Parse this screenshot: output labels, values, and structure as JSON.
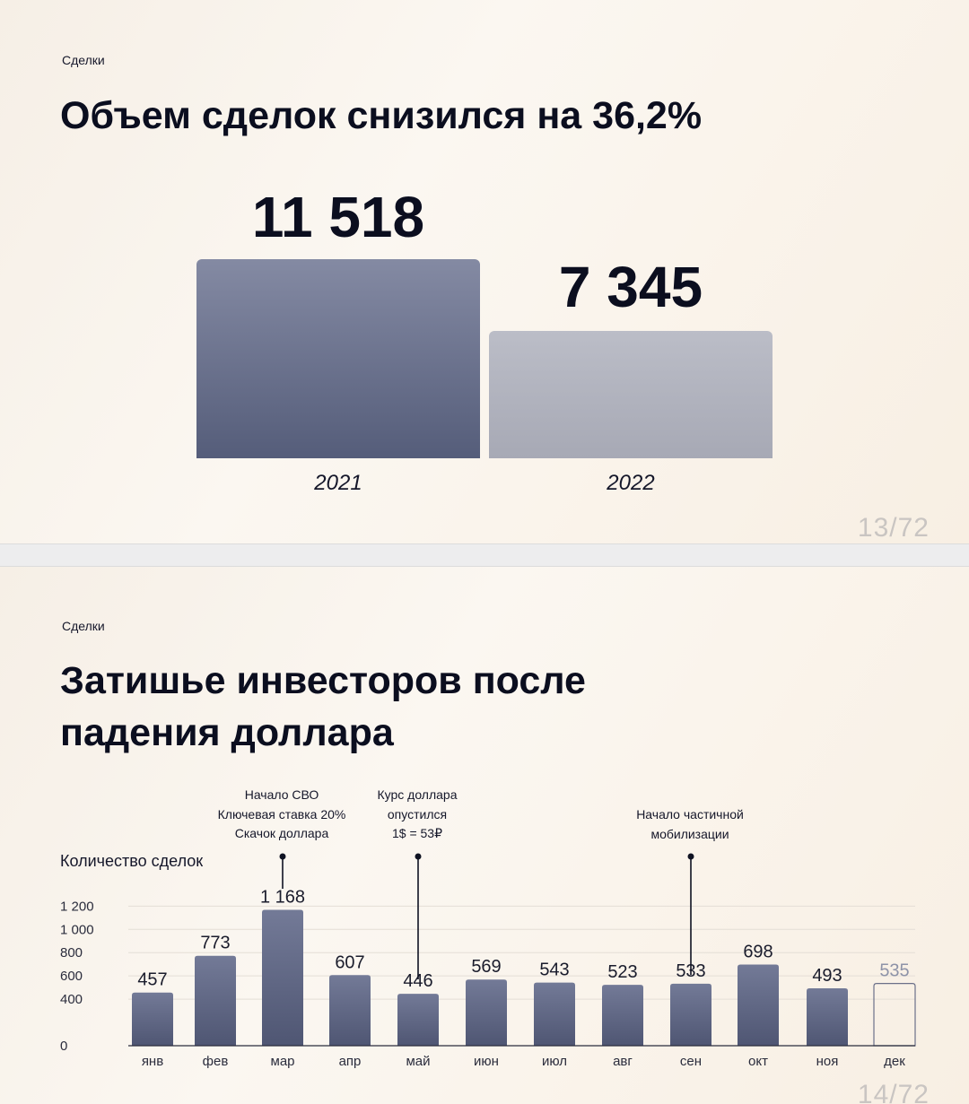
{
  "slide1": {
    "section": "Сделки",
    "title": "Объем сделок снизился на 36,2%",
    "page": "13/72"
  },
  "slide2": {
    "section": "Сделки",
    "title_line1": "Затишье инвесторов после",
    "title_line2": "падения доллара",
    "page": "14/72",
    "annotations": {
      "mar": [
        "Начало СВО",
        "Ключевая ставка 20%",
        "Скачок доллара"
      ],
      "may": [
        "Курс доллара",
        "опустился",
        "1$ = 53₽"
      ],
      "sep": [
        "Начало частичной",
        "мобилизации"
      ]
    }
  },
  "chart_data": [
    {
      "type": "bar",
      "categories": [
        "2021",
        "2022"
      ],
      "values": [
        11518,
        7345
      ],
      "value_labels": [
        "11 518",
        "7 345"
      ],
      "colors": [
        "#5f6784",
        "#b1b3be"
      ]
    },
    {
      "type": "bar",
      "ylabel": "Количество сделок",
      "ylim": [
        0,
        1200
      ],
      "yticks": [
        0,
        400,
        600,
        800,
        1000,
        1200
      ],
      "ytick_labels": [
        "0",
        "400",
        "600",
        "800",
        "1 000",
        "1 200"
      ],
      "categories": [
        "янв",
        "фев",
        "мар",
        "апр",
        "май",
        "июн",
        "июл",
        "авг",
        "сен",
        "окт",
        "ноя",
        "дек"
      ],
      "values": [
        457,
        773,
        1168,
        607,
        446,
        569,
        543,
        523,
        533,
        698,
        493,
        535
      ],
      "value_labels": [
        "457",
        "773",
        "1 168",
        "607",
        "446",
        "569",
        "543",
        "523",
        "533",
        "698",
        "493",
        "535"
      ],
      "projected": [
        false,
        false,
        false,
        false,
        false,
        false,
        false,
        false,
        false,
        false,
        false,
        true
      ],
      "grid": true,
      "colors": {
        "bar": "#5d6482",
        "projected_outline": "#6b7089",
        "projected_label": "#8e93a8"
      }
    }
  ]
}
